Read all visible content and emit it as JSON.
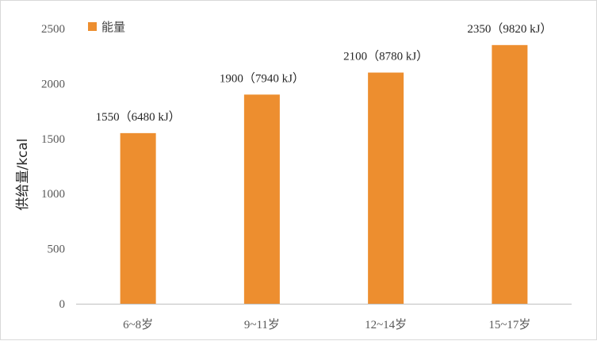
{
  "chart_data": {
    "type": "bar",
    "categories": [
      "6~8岁",
      "9~11岁",
      "12~14岁",
      "15~17岁"
    ],
    "series": [
      {
        "name": "能量",
        "values": [
          1550,
          1900,
          2100,
          2350
        ],
        "labels": [
          "1550（6480 kJ）",
          "1900（7940 kJ）",
          "2100（8780 kJ）",
          "2350（9820 kJ）"
        ],
        "color": "#ED8E2F"
      }
    ],
    "ylabel": "供给量/kcal",
    "ylim": [
      0,
      2500
    ],
    "yticks": [
      0,
      500,
      1000,
      1500,
      2000,
      2500
    ],
    "grid": false,
    "legend": "top-left"
  }
}
